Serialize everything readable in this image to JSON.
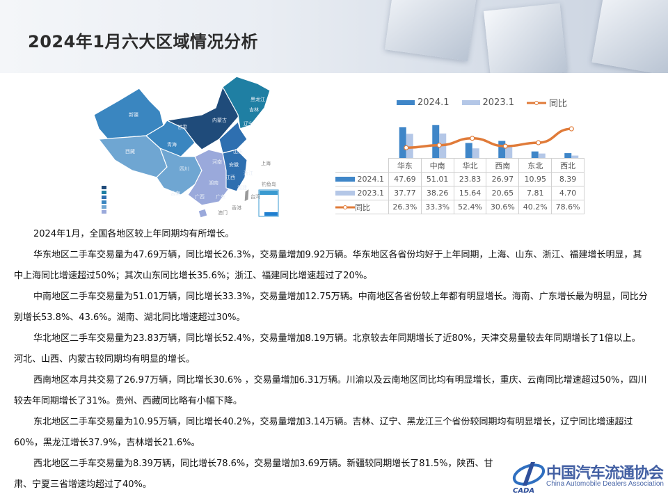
{
  "header": {
    "title": "2024年1月六大区域情况分析"
  },
  "map": {
    "labels": [
      "新疆",
      "西藏",
      "青海",
      "甘肃",
      "内蒙古",
      "四川",
      "云南",
      "广西",
      "广东",
      "湖南",
      "河南",
      "山东",
      "安徽",
      "江西",
      "福建",
      "浙江",
      "黑龙江",
      "吉林",
      "辽宁",
      "上海",
      "台湾",
      "钓鱼岛",
      "澳门",
      "香港"
    ],
    "legend_colors": [
      "#1f4b7a",
      "#1f7fa3",
      "#2e6fb0",
      "#3a86c0",
      "#6fa6d2",
      "#9aa9db"
    ]
  },
  "chart_data": {
    "type": "bar",
    "categories": [
      "华东",
      "中南",
      "华北",
      "西南",
      "东北",
      "西北"
    ],
    "series": [
      {
        "name": "2024.1",
        "values": [
          47.69,
          51.01,
          23.83,
          26.97,
          10.95,
          8.39
        ],
        "color": "#3f86c8"
      },
      {
        "name": "2023.1",
        "values": [
          37.77,
          38.26,
          15.64,
          20.65,
          7.81,
          4.7
        ],
        "color": "#b4c7e7"
      },
      {
        "name": "同比",
        "type": "line",
        "values": [
          26.3,
          33.3,
          52.4,
          30.6,
          40.2,
          78.6
        ],
        "unit": "%",
        "color": "#e07b39",
        "axis": "secondary"
      }
    ],
    "table_rows": [
      {
        "label": "2024.1",
        "cells": [
          "47.69",
          "51.01",
          "23.83",
          "26.97",
          "10.95",
          "8.39"
        ]
      },
      {
        "label": "2023.1",
        "cells": [
          "37.77",
          "38.26",
          "15.64",
          "20.65",
          "7.81",
          "4.70"
        ]
      },
      {
        "label": "同比",
        "cells": [
          "26.3%",
          "33.3%",
          "52.4%",
          "30.6%",
          "40.2%",
          "78.6%"
        ]
      }
    ],
    "legend_position": "top",
    "grid": false
  },
  "paragraphs": [
    "2024年1月，全国各地区较上年同期均有所增长。",
    "华东地区二手车交易量为47.69万辆，同比增长26.3%，交易量增加9.92万辆。华东地区各省份均好于上年同期，上海、山东、浙江、福建增长明显，其中上海同比增速超过50%；其次山东同比增长35.6%；浙江、福建同比增速超过了20%。",
    "中南地区二手车交易量为51.01万辆，同比增长33.3%，交易量增加12.75万辆。中南地区各省份较上年都有明显增长。海南、广东增长最为明显，同比分别增长53.8%、43.6%。湖南、湖北同比增速超过30%。",
    "华北地区二手车交易量为23.83万辆，同比增长52.4%，交易量增加8.19万辆。北京较去年同期增长了近80%，天津交易量较去年同期增长了1倍以上。河北、山西、内蒙古较同期均有明显的增长。",
    "西南地区本月共交易了26.97万辆，同比增长30.6% ，交易量增加6.31万辆。川渝以及云南地区同比均有明显增长，重庆、云南同比增速超过50%，四川较去年同期增长了31%。贵州、西藏同比略有小幅下降。",
    "东北地区二手车交易量为10.95万辆，同比增长40.2%，交易量增加3.14万辆。吉林、辽宁、黑龙江三个省份较同期均有明显增长，辽宁同比增速超过60%，黑龙江增长37.9%，吉林增长21.6%。",
    "西北地区二手车交易量为8.39万辆，同比增长78.6%，交易量增加3.69万辆。新疆较同期增长了81.5%，陕西、甘肃、宁夏三省增速均超过了40%。"
  ],
  "logo": {
    "name_cn": "中国汽车流通协会",
    "name_en": "China Automobile Dealers Association",
    "abbr": "CADA"
  }
}
